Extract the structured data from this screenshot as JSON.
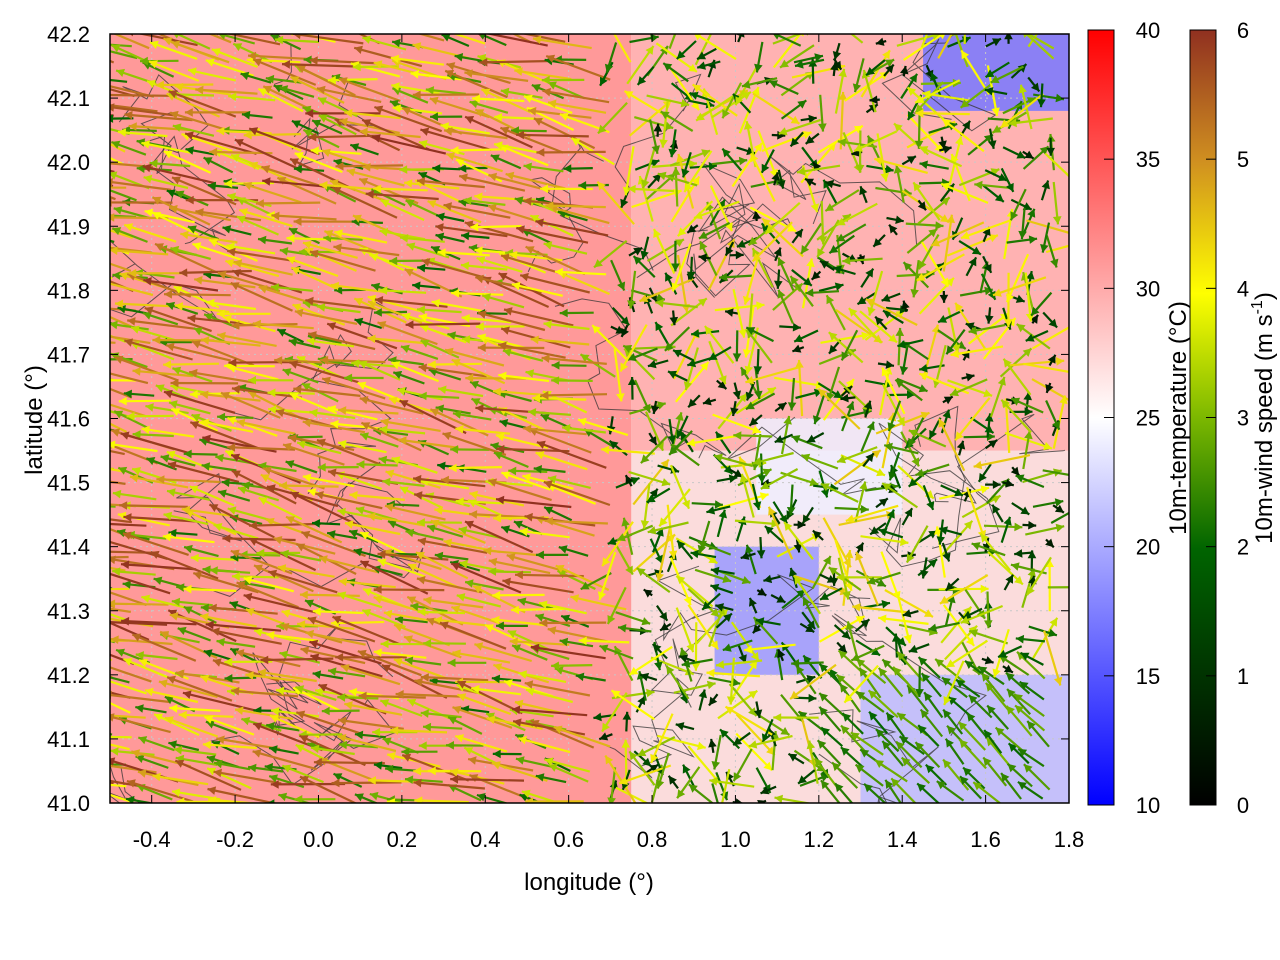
{
  "chart_data": {
    "type": "heatmap",
    "title": "",
    "xlabel": "longitude (°)",
    "ylabel": "latitude (°)",
    "xlim": [
      -0.5,
      1.8
    ],
    "ylim": [
      41.0,
      42.2
    ],
    "x_ticks": [
      "-0.4",
      "-0.2",
      "0.0",
      "0.2",
      "0.4",
      "0.6",
      "0.8",
      "1.0",
      "1.2",
      "1.4",
      "1.6",
      "1.8"
    ],
    "y_ticks": [
      "41.0",
      "41.1",
      "41.2",
      "41.3",
      "41.4",
      "41.5",
      "41.6",
      "41.7",
      "41.8",
      "41.9",
      "42.0",
      "42.1",
      "42.2"
    ],
    "temperature_colorbar": {
      "label": "10m-temperature (°C)",
      "range": [
        10,
        40
      ],
      "ticks": [
        "10",
        "15",
        "20",
        "25",
        "30",
        "35",
        "40"
      ],
      "colors": [
        "#0000ff",
        "#ffffff",
        "#ff0000"
      ]
    },
    "wind_colorbar": {
      "label_main": "10m-wind speed (m s",
      "label_sup": "-1",
      "label_end": ")",
      "range": [
        0,
        6
      ],
      "ticks": [
        "0",
        "1",
        "2",
        "3",
        "4",
        "5",
        "6"
      ],
      "colors": [
        "#000000",
        "#006400",
        "#7cb800",
        "#ffff00",
        "#d09020",
        "#903020"
      ]
    },
    "temperature_regions": [
      {
        "lon": [
          -0.5,
          0.75
        ],
        "lat": [
          41.0,
          42.2
        ],
        "temp": 31
      },
      {
        "lon": [
          0.75,
          1.8
        ],
        "lat": [
          41.55,
          42.2
        ],
        "temp": 30
      },
      {
        "lon": [
          0.95,
          1.2
        ],
        "lat": [
          41.2,
          41.4
        ],
        "temp": 19
      },
      {
        "lon": [
          1.3,
          1.8
        ],
        "lat": [
          41.0,
          41.2
        ],
        "temp": 21
      },
      {
        "lon": [
          1.45,
          1.8
        ],
        "lat": [
          42.08,
          42.2
        ],
        "temp": 17
      },
      {
        "lon": [
          1.05,
          1.4
        ],
        "lat": [
          41.45,
          41.6
        ],
        "temp": 24
      }
    ],
    "wind_field": {
      "west_region": {
        "lon": [
          -0.5,
          0.7
        ],
        "direction": "west-northwest",
        "speed_range": [
          2,
          6
        ]
      },
      "east_region": {
        "lon": [
          0.7,
          1.8
        ],
        "direction": "mixed",
        "speed_range": [
          0.5,
          4.5
        ]
      },
      "southeast_region": {
        "lon": [
          1.2,
          1.8
        ],
        "lat": [
          41.0,
          41.2
        ],
        "direction": "northwest",
        "speed_range": [
          2,
          3
        ]
      }
    },
    "contours": "terrain height isolines (unlabeled)",
    "grid": true
  }
}
